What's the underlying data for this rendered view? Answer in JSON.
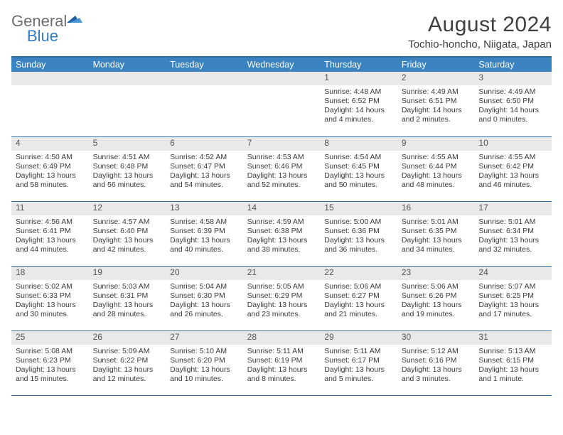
{
  "logo": {
    "text1": "General",
    "text2": "Blue"
  },
  "title": "August 2024",
  "location": "Tochio-honcho, Niigata, Japan",
  "colors": {
    "header_bg": "#3b83c0",
    "header_border": "#2f6ea3",
    "daynum_bg": "#e9e9e9",
    "text": "#3a3a3a"
  },
  "weekdays": [
    "Sunday",
    "Monday",
    "Tuesday",
    "Wednesday",
    "Thursday",
    "Friday",
    "Saturday"
  ],
  "weeks": [
    [
      {
        "day": "",
        "sunrise": "",
        "sunset": "",
        "daylight": ""
      },
      {
        "day": "",
        "sunrise": "",
        "sunset": "",
        "daylight": ""
      },
      {
        "day": "",
        "sunrise": "",
        "sunset": "",
        "daylight": ""
      },
      {
        "day": "",
        "sunrise": "",
        "sunset": "",
        "daylight": ""
      },
      {
        "day": "1",
        "sunrise": "Sunrise: 4:48 AM",
        "sunset": "Sunset: 6:52 PM",
        "daylight": "Daylight: 14 hours and 4 minutes."
      },
      {
        "day": "2",
        "sunrise": "Sunrise: 4:49 AM",
        "sunset": "Sunset: 6:51 PM",
        "daylight": "Daylight: 14 hours and 2 minutes."
      },
      {
        "day": "3",
        "sunrise": "Sunrise: 4:49 AM",
        "sunset": "Sunset: 6:50 PM",
        "daylight": "Daylight: 14 hours and 0 minutes."
      }
    ],
    [
      {
        "day": "4",
        "sunrise": "Sunrise: 4:50 AM",
        "sunset": "Sunset: 6:49 PM",
        "daylight": "Daylight: 13 hours and 58 minutes."
      },
      {
        "day": "5",
        "sunrise": "Sunrise: 4:51 AM",
        "sunset": "Sunset: 6:48 PM",
        "daylight": "Daylight: 13 hours and 56 minutes."
      },
      {
        "day": "6",
        "sunrise": "Sunrise: 4:52 AM",
        "sunset": "Sunset: 6:47 PM",
        "daylight": "Daylight: 13 hours and 54 minutes."
      },
      {
        "day": "7",
        "sunrise": "Sunrise: 4:53 AM",
        "sunset": "Sunset: 6:46 PM",
        "daylight": "Daylight: 13 hours and 52 minutes."
      },
      {
        "day": "8",
        "sunrise": "Sunrise: 4:54 AM",
        "sunset": "Sunset: 6:45 PM",
        "daylight": "Daylight: 13 hours and 50 minutes."
      },
      {
        "day": "9",
        "sunrise": "Sunrise: 4:55 AM",
        "sunset": "Sunset: 6:44 PM",
        "daylight": "Daylight: 13 hours and 48 minutes."
      },
      {
        "day": "10",
        "sunrise": "Sunrise: 4:55 AM",
        "sunset": "Sunset: 6:42 PM",
        "daylight": "Daylight: 13 hours and 46 minutes."
      }
    ],
    [
      {
        "day": "11",
        "sunrise": "Sunrise: 4:56 AM",
        "sunset": "Sunset: 6:41 PM",
        "daylight": "Daylight: 13 hours and 44 minutes."
      },
      {
        "day": "12",
        "sunrise": "Sunrise: 4:57 AM",
        "sunset": "Sunset: 6:40 PM",
        "daylight": "Daylight: 13 hours and 42 minutes."
      },
      {
        "day": "13",
        "sunrise": "Sunrise: 4:58 AM",
        "sunset": "Sunset: 6:39 PM",
        "daylight": "Daylight: 13 hours and 40 minutes."
      },
      {
        "day": "14",
        "sunrise": "Sunrise: 4:59 AM",
        "sunset": "Sunset: 6:38 PM",
        "daylight": "Daylight: 13 hours and 38 minutes."
      },
      {
        "day": "15",
        "sunrise": "Sunrise: 5:00 AM",
        "sunset": "Sunset: 6:36 PM",
        "daylight": "Daylight: 13 hours and 36 minutes."
      },
      {
        "day": "16",
        "sunrise": "Sunrise: 5:01 AM",
        "sunset": "Sunset: 6:35 PM",
        "daylight": "Daylight: 13 hours and 34 minutes."
      },
      {
        "day": "17",
        "sunrise": "Sunrise: 5:01 AM",
        "sunset": "Sunset: 6:34 PM",
        "daylight": "Daylight: 13 hours and 32 minutes."
      }
    ],
    [
      {
        "day": "18",
        "sunrise": "Sunrise: 5:02 AM",
        "sunset": "Sunset: 6:33 PM",
        "daylight": "Daylight: 13 hours and 30 minutes."
      },
      {
        "day": "19",
        "sunrise": "Sunrise: 5:03 AM",
        "sunset": "Sunset: 6:31 PM",
        "daylight": "Daylight: 13 hours and 28 minutes."
      },
      {
        "day": "20",
        "sunrise": "Sunrise: 5:04 AM",
        "sunset": "Sunset: 6:30 PM",
        "daylight": "Daylight: 13 hours and 26 minutes."
      },
      {
        "day": "21",
        "sunrise": "Sunrise: 5:05 AM",
        "sunset": "Sunset: 6:29 PM",
        "daylight": "Daylight: 13 hours and 23 minutes."
      },
      {
        "day": "22",
        "sunrise": "Sunrise: 5:06 AM",
        "sunset": "Sunset: 6:27 PM",
        "daylight": "Daylight: 13 hours and 21 minutes."
      },
      {
        "day": "23",
        "sunrise": "Sunrise: 5:06 AM",
        "sunset": "Sunset: 6:26 PM",
        "daylight": "Daylight: 13 hours and 19 minutes."
      },
      {
        "day": "24",
        "sunrise": "Sunrise: 5:07 AM",
        "sunset": "Sunset: 6:25 PM",
        "daylight": "Daylight: 13 hours and 17 minutes."
      }
    ],
    [
      {
        "day": "25",
        "sunrise": "Sunrise: 5:08 AM",
        "sunset": "Sunset: 6:23 PM",
        "daylight": "Daylight: 13 hours and 15 minutes."
      },
      {
        "day": "26",
        "sunrise": "Sunrise: 5:09 AM",
        "sunset": "Sunset: 6:22 PM",
        "daylight": "Daylight: 13 hours and 12 minutes."
      },
      {
        "day": "27",
        "sunrise": "Sunrise: 5:10 AM",
        "sunset": "Sunset: 6:20 PM",
        "daylight": "Daylight: 13 hours and 10 minutes."
      },
      {
        "day": "28",
        "sunrise": "Sunrise: 5:11 AM",
        "sunset": "Sunset: 6:19 PM",
        "daylight": "Daylight: 13 hours and 8 minutes."
      },
      {
        "day": "29",
        "sunrise": "Sunrise: 5:11 AM",
        "sunset": "Sunset: 6:17 PM",
        "daylight": "Daylight: 13 hours and 5 minutes."
      },
      {
        "day": "30",
        "sunrise": "Sunrise: 5:12 AM",
        "sunset": "Sunset: 6:16 PM",
        "daylight": "Daylight: 13 hours and 3 minutes."
      },
      {
        "day": "31",
        "sunrise": "Sunrise: 5:13 AM",
        "sunset": "Sunset: 6:15 PM",
        "daylight": "Daylight: 13 hours and 1 minute."
      }
    ]
  ]
}
